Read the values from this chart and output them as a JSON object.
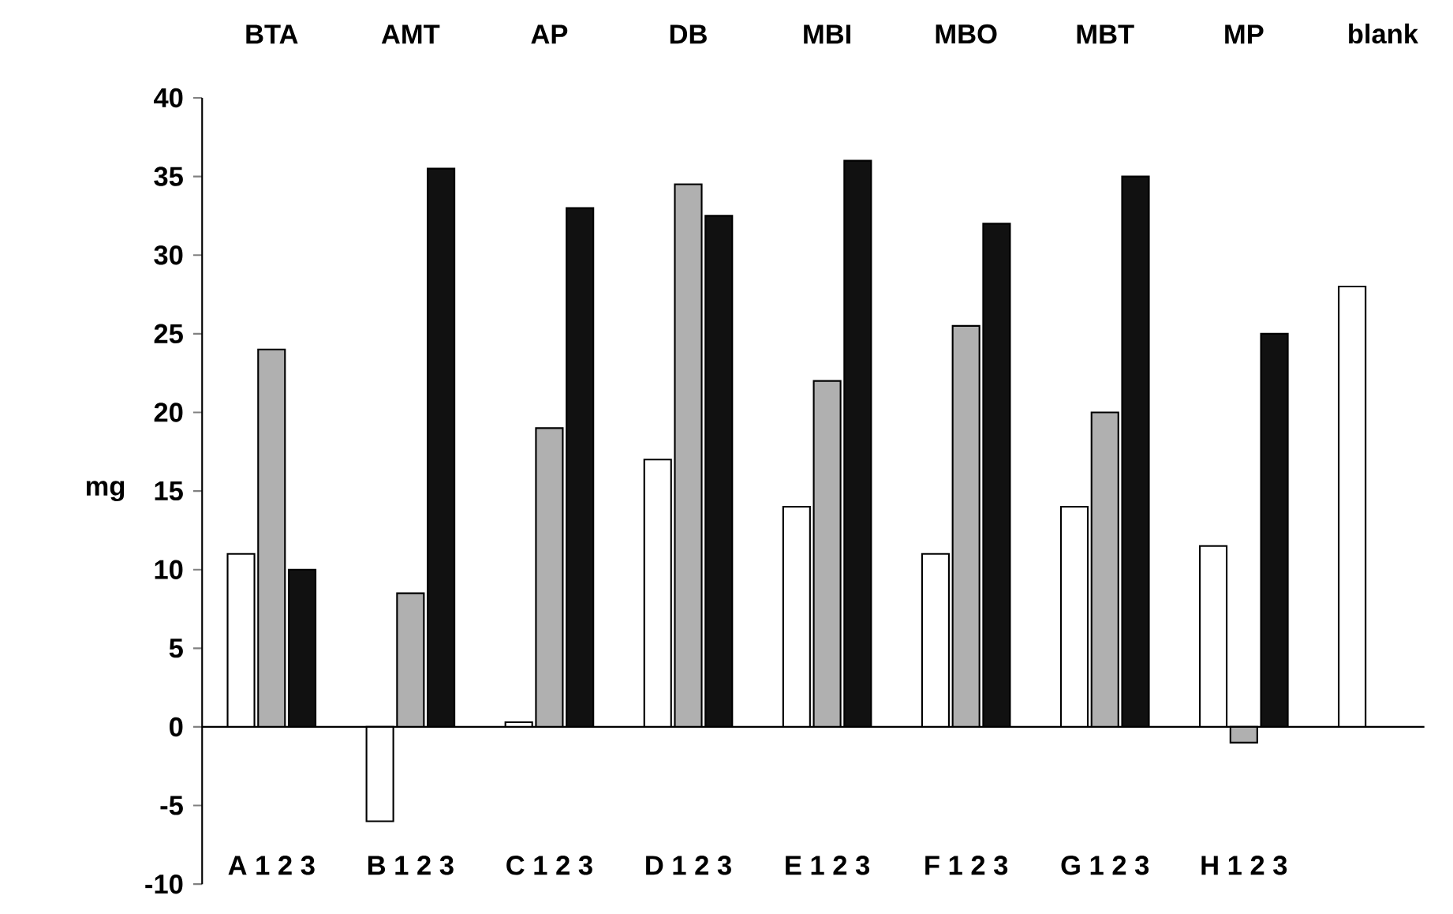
{
  "chart_data": {
    "type": "bar",
    "ylabel": "mg",
    "categories": [
      "BTA",
      "AMT",
      "AP",
      "DB",
      "MBI",
      "MBO",
      "MBT",
      "MP",
      "blank"
    ],
    "series": [
      {
        "color": "#ffffff",
        "values": [
          11,
          -6,
          0.3,
          17,
          14,
          11,
          14,
          11.5,
          28
        ]
      },
      {
        "color": "#b0b0b0",
        "values": [
          24,
          8.5,
          19,
          34.5,
          22,
          25.5,
          20,
          -1,
          null
        ]
      },
      {
        "color": "#111111",
        "values": [
          10,
          35.5,
          33,
          32.5,
          36,
          32,
          35,
          25,
          null
        ]
      }
    ],
    "annotations": [
      "A 1 2 3",
      "B 1 2 3",
      "C 1 2 3",
      "D 1 2 3",
      "E 1 2 3",
      "F 1 2 3",
      "G 1 2 3",
      "H 1 2 3"
    ],
    "ylim": [
      -10,
      40
    ],
    "yticks": [
      -10,
      -5,
      0,
      5,
      10,
      15,
      20,
      25,
      30,
      35,
      40
    ]
  }
}
